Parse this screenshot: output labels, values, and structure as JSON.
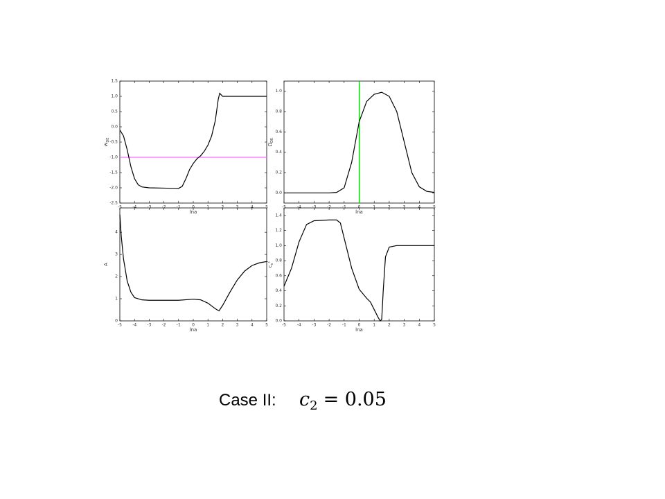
{
  "chart_data": [
    {
      "type": "line",
      "xlabel": "lna",
      "ylabel": "w",
      "ylabel_sub": "DE",
      "x": [
        -5,
        -4.75,
        -4.5,
        -4.25,
        -4,
        -3.75,
        -3.5,
        -3,
        -2,
        -1,
        -0.75,
        -0.5,
        -0.25,
        0,
        0.25,
        0.5,
        0.75,
        1,
        1.25,
        1.5,
        1.7,
        1.8,
        1.9,
        2,
        3,
        5
      ],
      "series": [
        {
          "color": "#000000",
          "values": [
            -0.1,
            -0.3,
            -0.75,
            -1.3,
            -1.7,
            -1.9,
            -1.97,
            -2.0,
            -2.01,
            -2.02,
            -1.95,
            -1.7,
            -1.4,
            -1.2,
            -1.05,
            -0.95,
            -0.8,
            -0.6,
            -0.3,
            0.2,
            0.9,
            1.1,
            1.05,
            1.0,
            1.0,
            1.0
          ]
        }
      ],
      "hlines": [
        {
          "value": -1,
          "color": "#ff66ff"
        }
      ],
      "xlim": [
        -5,
        5
      ],
      "xticks": [
        -5,
        -4,
        -3,
        -2,
        -1,
        0,
        1,
        2,
        3,
        4,
        5
      ],
      "ylim": [
        -2.5,
        1.5
      ],
      "yticks": [
        -2.5,
        {
          "value": -2,
          "label": "-2.0"
        },
        -1.5,
        {
          "value": -1,
          "label": "-1.0"
        },
        -0.5,
        {
          "value": 0,
          "label": "0.0"
        },
        0.5,
        {
          "value": 1,
          "label": "1.0"
        },
        1.5
      ]
    },
    {
      "type": "line",
      "xlabel": "lna",
      "ylabel": "Ω",
      "ylabel_sub": "DE",
      "x": [
        -5,
        -2,
        -1.5,
        -1,
        -0.5,
        0,
        0.5,
        1,
        1.5,
        2,
        2.5,
        3,
        3.5,
        4,
        4.5,
        5
      ],
      "series": [
        {
          "color": "#000000",
          "values": [
            0,
            0,
            0.005,
            0.05,
            0.3,
            0.7,
            0.9,
            0.97,
            0.99,
            0.95,
            0.8,
            0.5,
            0.2,
            0.06,
            0.015,
            0.005
          ]
        }
      ],
      "vlines": [
        {
          "value": 0,
          "color": "#00cc00"
        }
      ],
      "xlim": [
        -5,
        5
      ],
      "xticks": [
        -5,
        -4,
        -3,
        -2,
        -1,
        0,
        1,
        2,
        3,
        4,
        5
      ],
      "ylim": [
        -0.1,
        1.1
      ],
      "yticks": [
        {
          "value": 0,
          "label": "0.0"
        },
        0.2,
        0.4,
        0.6,
        0.8,
        {
          "value": 1,
          "label": "1.0"
        }
      ]
    },
    {
      "type": "line",
      "xlabel": "lna",
      "ylabel": "A",
      "x": [
        -5,
        -4.9,
        -4.75,
        -4.5,
        -4.25,
        -4,
        -3.5,
        -3,
        -2,
        -1,
        0,
        0.5,
        1,
        1.5,
        1.75,
        2,
        2.5,
        3,
        3.5,
        4,
        4.5,
        5
      ],
      "series": [
        {
          "color": "#000000",
          "values": [
            4.8,
            3.8,
            2.8,
            1.8,
            1.3,
            1.05,
            0.95,
            0.93,
            0.93,
            0.93,
            0.98,
            0.95,
            0.8,
            0.55,
            0.45,
            0.7,
            1.3,
            1.85,
            2.25,
            2.5,
            2.62,
            2.68
          ]
        }
      ],
      "xlim": [
        -5,
        5
      ],
      "xticks": [
        -5,
        -4,
        -3,
        -2,
        -1,
        0,
        1,
        2,
        3,
        4,
        5
      ],
      "ylim": [
        0,
        5.1
      ],
      "yticks": [
        0,
        1,
        2,
        3,
        4
      ]
    },
    {
      "type": "line",
      "xlabel": "lna",
      "ylabel": "c",
      "ylabel_sub": "s",
      "ylabel_sup": "2",
      "x": [
        -5,
        -4.5,
        -4,
        -3.5,
        -3,
        -2,
        -1.5,
        -1.25,
        -1,
        -0.5,
        0,
        0.5,
        0.75,
        1,
        1.25,
        1.4,
        1.5,
        1.6,
        1.75,
        2,
        2.5,
        5
      ],
      "series": [
        {
          "color": "#000000",
          "values": [
            0.46,
            0.7,
            1.05,
            1.28,
            1.33,
            1.34,
            1.34,
            1.3,
            1.1,
            0.7,
            0.42,
            0.3,
            0.25,
            0.15,
            0.05,
            0.0,
            0.02,
            0.4,
            0.85,
            0.98,
            1.0,
            1.0
          ]
        }
      ],
      "xlim": [
        -5,
        5
      ],
      "xticks": [
        -5,
        -4,
        -3,
        -2,
        -1,
        0,
        1,
        2,
        3,
        4,
        5
      ],
      "ylim": [
        0,
        1.5
      ],
      "yticks": [
        {
          "value": 0,
          "label": "0.0"
        },
        0.2,
        0.4,
        0.6,
        0.8,
        {
          "value": 1,
          "label": "1.0"
        },
        1.2,
        1.4
      ]
    }
  ],
  "caption": {
    "label": "Case II:",
    "symbol": "c",
    "subscript": "2",
    "relation": "= 0.05"
  }
}
